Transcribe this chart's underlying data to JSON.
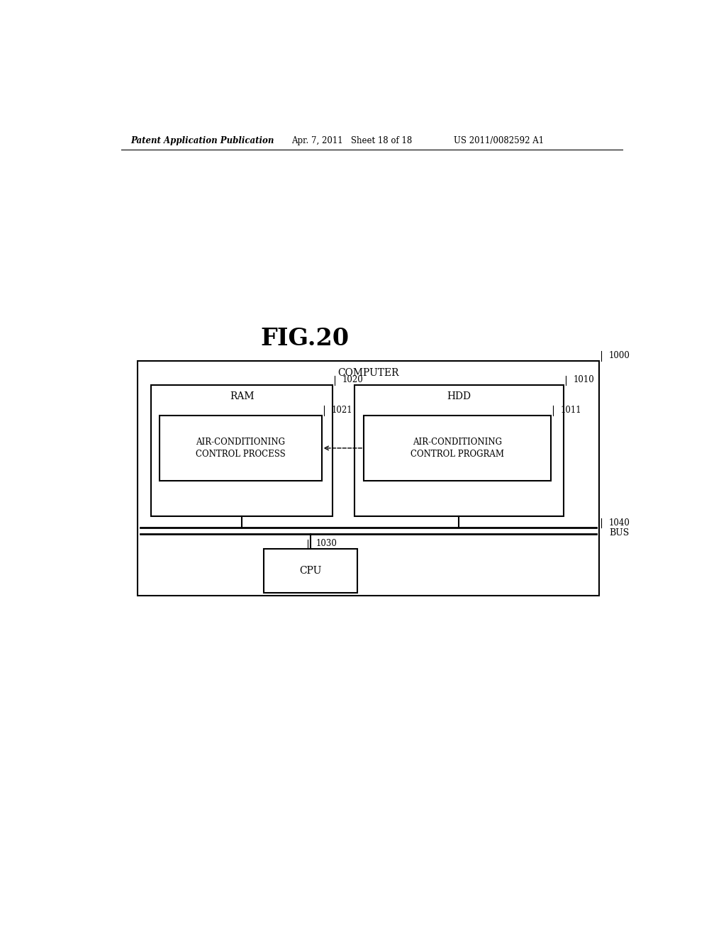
{
  "background_color": "#ffffff",
  "header_left": "Patent Application Publication",
  "header_mid": "Apr. 7, 2011   Sheet 18 of 18",
  "header_right": "US 2011/0082592 A1",
  "fig_title": "FIG.20",
  "outer_box_label": "COMPUTER",
  "outer_box_ref": "1000",
  "ram_box_label": "RAM",
  "ram_box_ref": "1020",
  "hdd_box_label": "HDD",
  "hdd_box_ref": "1010",
  "process_box_label": "AIR-CONDITIONING\nCONTROL PROCESS",
  "process_box_ref": "1021",
  "program_box_label": "AIR-CONDITIONING\nCONTROL PROGRAM",
  "program_box_ref": "1011",
  "cpu_box_label": "CPU",
  "cpu_box_ref": "1030",
  "bus_label": "BUS",
  "bus_ref": "1040"
}
